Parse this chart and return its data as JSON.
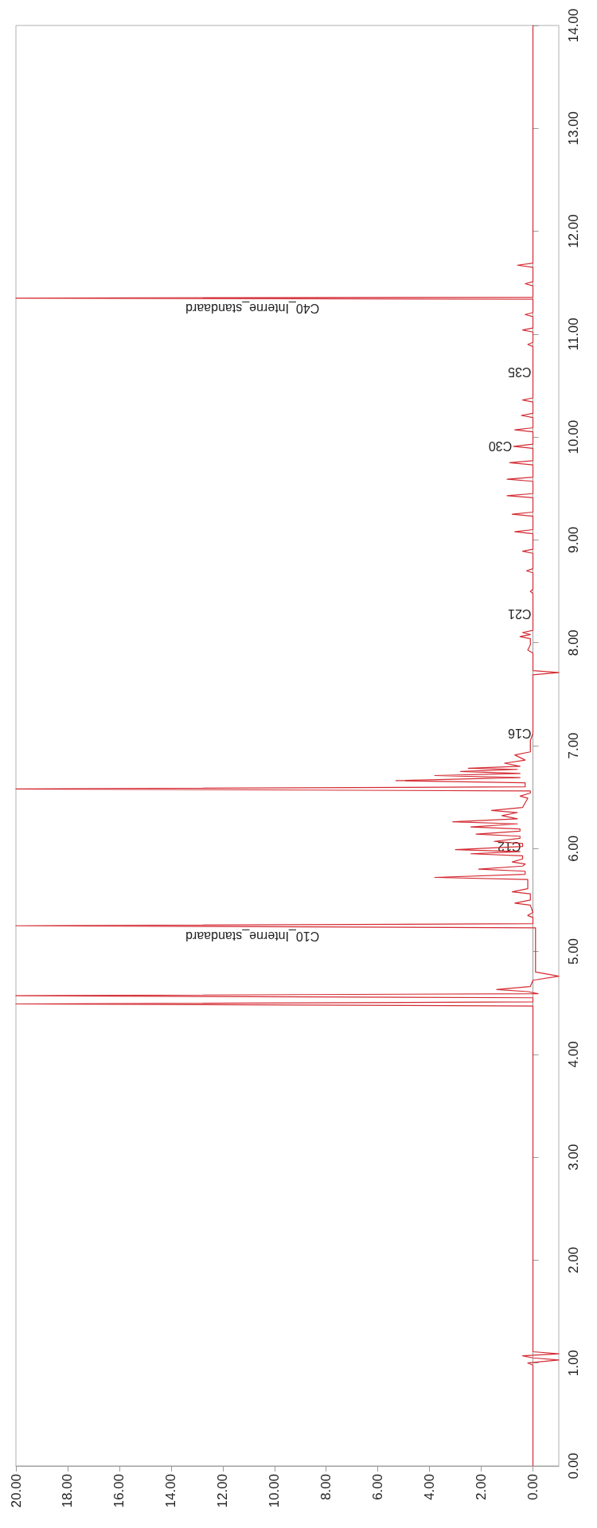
{
  "chart_data": {
    "type": "line",
    "color": "#d42a32",
    "marker": "none",
    "x": [
      0,
      0,
      0.2,
      -1,
      0,
      0.4,
      -1,
      0,
      0,
      20,
      0,
      0,
      20,
      -0.2,
      0.2,
      1.4,
      0.1,
      0,
      -1,
      -0.1,
      -0.1,
      20,
      0,
      0,
      0.2,
      0,
      0.1,
      0.7,
      0.1,
      0.1,
      0.8,
      0.2,
      0.2,
      3.8,
      0.3,
      0.3,
      2.1,
      0.4,
      0.3,
      0.8,
      0.4,
      0.4,
      2.4,
      0.5,
      3.0,
      0.4,
      0.4,
      1.5,
      0.5,
      0.5,
      2.2,
      0.5,
      0.5,
      2.4,
      0.6,
      3.1,
      0.6,
      1.2,
      0.6,
      1.6,
      0.4,
      0.2,
      0.5,
      0.1,
      0.1,
      20,
      0.3,
      0.3,
      5.3,
      0.5,
      3.8,
      0.5,
      2.8,
      0.6,
      2.5,
      0.5,
      1.1,
      0.3,
      0.7,
      0.1,
      0.1,
      0,
      0,
      0,
      -1,
      0,
      0,
      0.2,
      0.1,
      0.1,
      0.5,
      0.1,
      0.4,
      0,
      0,
      0,
      0.1,
      0,
      0,
      0.25,
      0,
      0,
      0.4,
      0,
      0,
      0.7,
      0,
      0,
      0.8,
      0,
      0,
      1.0,
      0,
      0,
      1.0,
      0,
      0,
      0.9,
      0,
      0,
      0.75,
      0,
      0,
      0.7,
      0,
      0,
      0.45,
      0,
      0,
      0.4,
      0,
      0,
      0,
      0.2,
      0,
      0,
      0.4,
      0,
      0,
      0.3,
      0,
      0,
      20,
      0,
      0,
      0.3,
      0,
      0,
      0.6,
      0,
      0
    ],
    "values": [
      0,
      0.98,
      1.0,
      1.03,
      1.05,
      1.07,
      1.09,
      1.11,
      4.47,
      4.49,
      4.51,
      4.55,
      4.57,
      4.59,
      4.61,
      4.63,
      4.66,
      4.72,
      4.76,
      4.8,
      5.23,
      5.25,
      5.27,
      5.33,
      5.35,
      5.38,
      5.45,
      5.47,
      5.5,
      5.56,
      5.58,
      5.61,
      5.7,
      5.72,
      5.75,
      5.78,
      5.8,
      5.83,
      5.85,
      5.87,
      5.9,
      5.93,
      5.95,
      5.97,
      5.99,
      6.02,
      6.05,
      6.07,
      6.1,
      6.12,
      6.14,
      6.17,
      6.19,
      6.21,
      6.24,
      6.26,
      6.29,
      6.32,
      6.35,
      6.37,
      6.4,
      6.49,
      6.51,
      6.54,
      6.56,
      6.58,
      6.6,
      6.64,
      6.66,
      6.69,
      6.71,
      6.73,
      6.75,
      6.77,
      6.78,
      6.8,
      6.83,
      6.86,
      6.91,
      6.94,
      7.05,
      7.12,
      7.6,
      7.69,
      7.71,
      7.73,
      7.9,
      7.93,
      7.98,
      8.04,
      8.06,
      8.08,
      8.1,
      8.12,
      8.28,
      8.48,
      8.5,
      8.52,
      8.68,
      8.7,
      8.72,
      8.87,
      8.89,
      8.91,
      9.06,
      9.08,
      9.1,
      9.23,
      9.25,
      9.27,
      9.41,
      9.43,
      9.45,
      9.57,
      9.59,
      9.61,
      9.73,
      9.75,
      9.77,
      9.89,
      9.91,
      9.93,
      10.05,
      10.07,
      10.09,
      10.19,
      10.21,
      10.23,
      10.34,
      10.36,
      10.38,
      10.63,
      10.88,
      10.9,
      10.92,
      11.02,
      11.04,
      11.06,
      11.17,
      11.19,
      11.21,
      11.34,
      11.35,
      11.36,
      11.47,
      11.49,
      11.51,
      11.65,
      11.67,
      11.69,
      14
    ],
    "xlim": [
      20,
      -1
    ],
    "xticks": [
      {
        "value": 20,
        "label": "20.00"
      },
      {
        "value": 18,
        "label": "18.00"
      },
      {
        "value": 16,
        "label": "16.00"
      },
      {
        "value": 14,
        "label": "14.00"
      },
      {
        "value": 12,
        "label": "12.00"
      },
      {
        "value": 10,
        "label": "10.00"
      },
      {
        "value": 8,
        "label": "8.00"
      },
      {
        "value": 6,
        "label": "6.00"
      },
      {
        "value": 4,
        "label": "4.00"
      },
      {
        "value": 2,
        "label": "2.00"
      },
      {
        "value": 0,
        "label": "0.00"
      }
    ],
    "ylim": [
      0,
      14
    ],
    "yticks": [
      {
        "value": 0,
        "label": "0.00"
      },
      {
        "value": 1,
        "label": "1.00"
      },
      {
        "value": 2,
        "label": "2.00"
      },
      {
        "value": 3,
        "label": "3.00"
      },
      {
        "value": 4,
        "label": "4.00"
      },
      {
        "value": 5,
        "label": "5.00"
      },
      {
        "value": 6,
        "label": "6.00"
      },
      {
        "value": 7,
        "label": "7.00"
      },
      {
        "value": 8,
        "label": "8.00"
      },
      {
        "value": 9,
        "label": "9.00"
      },
      {
        "value": 10,
        "label": "10.00"
      },
      {
        "value": 11,
        "label": "11.00"
      },
      {
        "value": 12,
        "label": "12.00"
      },
      {
        "value": 13,
        "label": "13.00"
      },
      {
        "value": 14,
        "label": "14.00"
      }
    ],
    "annotations": [
      {
        "text": "C10_Interne_standaard",
        "x": 8.2,
        "y": 5.25
      },
      {
        "text": "C12",
        "x": 0.4,
        "y": 6.02
      },
      {
        "text": "C16",
        "x": 0,
        "y": 7.12
      },
      {
        "text": "C21",
        "x": 0,
        "y": 8.28
      },
      {
        "text": "C30",
        "x": 0.75,
        "y": 9.91
      },
      {
        "text": "C35",
        "x": 0,
        "y": 10.63
      },
      {
        "text": "C40_Interne_standaard",
        "x": 8.2,
        "y": 11.35
      }
    ]
  }
}
